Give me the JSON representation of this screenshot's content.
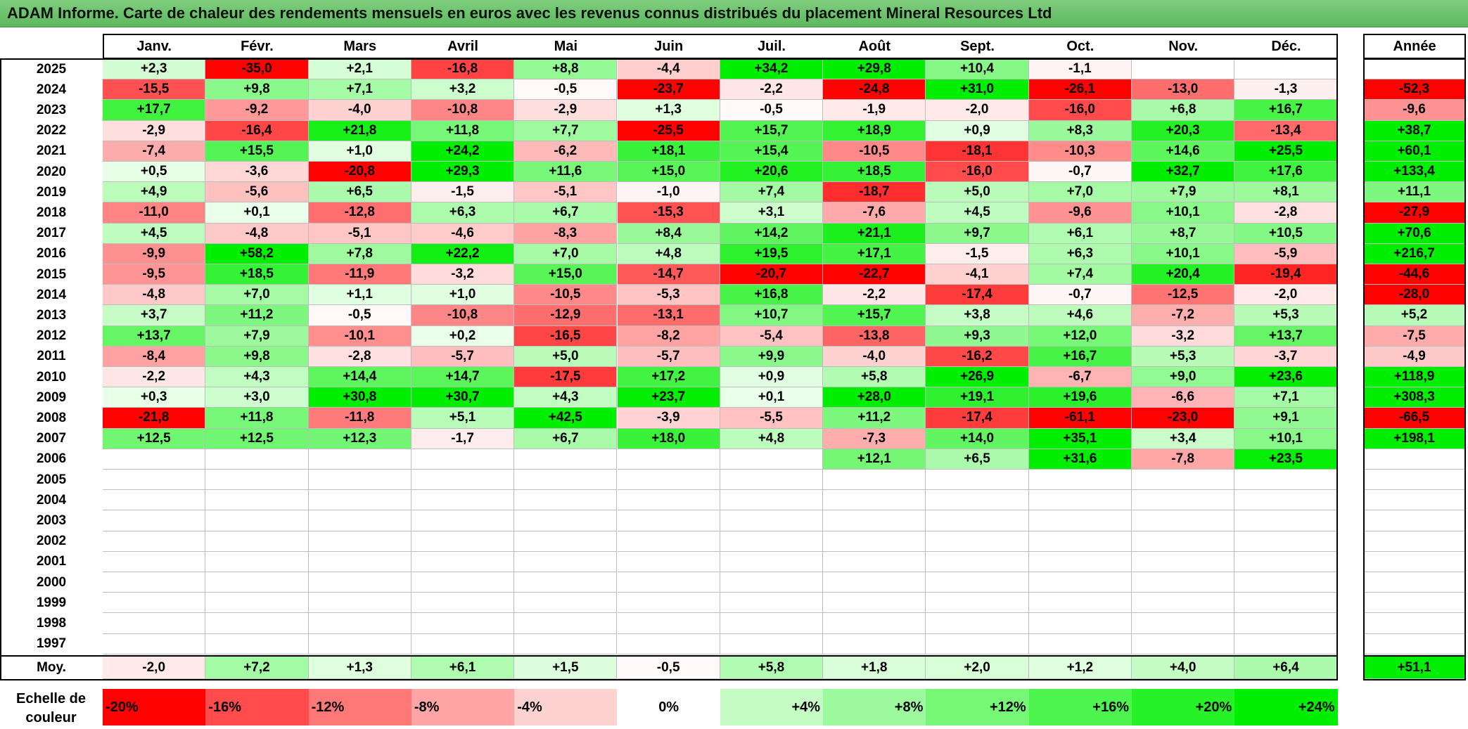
{
  "title": "ADAM Informe. Carte de chaleur des rendements mensuels en euros avec les revenus connus distribués du placement Mineral Resources Ltd",
  "colors": {
    "negative_max": "#ff0000",
    "neutral": "#ffffff",
    "positive_max": "#00ee00",
    "title_bar": "#6cc46c"
  },
  "chart_data": {
    "type": "heatmap",
    "title": "ADAM Informe. Carte de chaleur des rendements mensuels en euros avec les revenus connus distribués du placement Mineral Resources Ltd",
    "months": [
      "Janv.",
      "Févr.",
      "Mars",
      "Avril",
      "Mai",
      "Juin",
      "Juil.",
      "Août",
      "Sept.",
      "Oct.",
      "Nov.",
      "Déc."
    ],
    "year_header": "Année",
    "average_label": "Moy.",
    "scale_label_line1": "Echelle de",
    "scale_label_line2": "couleur",
    "rows": [
      {
        "year": "2025",
        "values": [
          2.3,
          -35.0,
          2.1,
          -16.8,
          8.8,
          -4.4,
          34.2,
          29.8,
          10.4,
          -1.1,
          null,
          null
        ],
        "annual": null
      },
      {
        "year": "2024",
        "values": [
          -15.5,
          9.8,
          7.1,
          3.2,
          -0.5,
          -23.7,
          -2.2,
          -24.8,
          31.0,
          -26.1,
          -13.0,
          -1.3
        ],
        "annual": -52.3
      },
      {
        "year": "2023",
        "values": [
          17.7,
          -9.2,
          -4.0,
          -10.8,
          -2.9,
          1.3,
          -0.5,
          -1.9,
          -2.0,
          -16.0,
          6.8,
          16.7
        ],
        "annual": -9.6
      },
      {
        "year": "2022",
        "values": [
          -2.9,
          -16.4,
          21.8,
          11.8,
          7.7,
          -25.5,
          15.7,
          18.9,
          0.9,
          8.3,
          20.3,
          -13.4
        ],
        "annual": 38.7
      },
      {
        "year": "2021",
        "values": [
          -7.4,
          15.5,
          1.0,
          24.2,
          -6.2,
          18.1,
          15.4,
          -10.5,
          -18.1,
          -10.3,
          14.6,
          25.5
        ],
        "annual": 60.1
      },
      {
        "year": "2020",
        "values": [
          0.5,
          -3.6,
          -20.8,
          29.3,
          11.6,
          15.0,
          20.6,
          18.5,
          -16.0,
          -0.7,
          32.7,
          17.6
        ],
        "annual": 133.4
      },
      {
        "year": "2019",
        "values": [
          4.9,
          -5.6,
          6.5,
          -1.5,
          -5.1,
          -1.0,
          7.4,
          -18.7,
          5.0,
          7.0,
          7.9,
          8.1
        ],
        "annual": 11.1
      },
      {
        "year": "2018",
        "values": [
          -11.0,
          0.1,
          -12.8,
          6.3,
          6.7,
          -15.3,
          3.1,
          -7.6,
          4.5,
          -9.6,
          10.1,
          -2.8
        ],
        "annual": -27.9
      },
      {
        "year": "2017",
        "values": [
          4.5,
          -4.8,
          -5.1,
          -4.6,
          -8.3,
          8.4,
          14.2,
          21.1,
          9.7,
          6.1,
          8.7,
          10.5
        ],
        "annual": 70.6
      },
      {
        "year": "2016",
        "values": [
          -9.9,
          58.2,
          7.8,
          22.2,
          7.0,
          4.8,
          19.5,
          17.1,
          -1.5,
          6.3,
          10.1,
          -5.9
        ],
        "annual": 216.7
      },
      {
        "year": "2015",
        "values": [
          -9.5,
          18.5,
          -11.9,
          -3.2,
          15.0,
          -14.7,
          -20.7,
          -22.7,
          -4.1,
          7.4,
          20.4,
          -19.4
        ],
        "annual": -44.6
      },
      {
        "year": "2014",
        "values": [
          -4.8,
          7.0,
          1.1,
          1.0,
          -10.5,
          -5.3,
          16.8,
          -2.2,
          -17.4,
          -0.7,
          -12.5,
          -2.0
        ],
        "annual": -28.0
      },
      {
        "year": "2013",
        "values": [
          3.7,
          11.2,
          -0.5,
          -10.8,
          -12.9,
          -13.1,
          10.7,
          15.7,
          3.8,
          4.6,
          -7.2,
          5.3
        ],
        "annual": 5.2
      },
      {
        "year": "2012",
        "values": [
          13.7,
          7.9,
          -10.1,
          0.2,
          -16.5,
          -8.2,
          -5.4,
          -13.8,
          9.3,
          12.0,
          -3.2,
          13.7
        ],
        "annual": -7.5
      },
      {
        "year": "2011",
        "values": [
          -8.4,
          9.8,
          -2.8,
          -5.7,
          5.0,
          -5.7,
          9.9,
          -4.0,
          -16.2,
          16.7,
          5.3,
          -3.7
        ],
        "annual": -4.9
      },
      {
        "year": "2010",
        "values": [
          -2.2,
          4.3,
          14.4,
          14.7,
          -17.5,
          17.2,
          0.9,
          5.8,
          26.9,
          -6.7,
          9.0,
          23.6
        ],
        "annual": 118.9
      },
      {
        "year": "2009",
        "values": [
          0.3,
          3.0,
          30.8,
          30.7,
          4.3,
          23.7,
          0.1,
          28.0,
          19.1,
          19.6,
          -6.6,
          7.1
        ],
        "annual": 308.3
      },
      {
        "year": "2008",
        "values": [
          -21.8,
          11.8,
          -11.8,
          5.1,
          42.5,
          -3.9,
          -5.5,
          11.2,
          -17.4,
          -61.1,
          -23.0,
          9.1
        ],
        "annual": -66.5
      },
      {
        "year": "2007",
        "values": [
          12.5,
          12.5,
          12.3,
          -1.7,
          6.7,
          18.0,
          4.8,
          -7.3,
          14.0,
          35.1,
          3.4,
          10.1
        ],
        "annual": 198.1
      },
      {
        "year": "2006",
        "values": [
          null,
          null,
          null,
          null,
          null,
          null,
          null,
          12.1,
          6.5,
          31.6,
          -7.8,
          23.5
        ],
        "annual": null
      },
      {
        "year": "2005",
        "values": [
          null,
          null,
          null,
          null,
          null,
          null,
          null,
          null,
          null,
          null,
          null,
          null
        ],
        "annual": null
      },
      {
        "year": "2004",
        "values": [
          null,
          null,
          null,
          null,
          null,
          null,
          null,
          null,
          null,
          null,
          null,
          null
        ],
        "annual": null
      },
      {
        "year": "2003",
        "values": [
          null,
          null,
          null,
          null,
          null,
          null,
          null,
          null,
          null,
          null,
          null,
          null
        ],
        "annual": null
      },
      {
        "year": "2002",
        "values": [
          null,
          null,
          null,
          null,
          null,
          null,
          null,
          null,
          null,
          null,
          null,
          null
        ],
        "annual": null
      },
      {
        "year": "2001",
        "values": [
          null,
          null,
          null,
          null,
          null,
          null,
          null,
          null,
          null,
          null,
          null,
          null
        ],
        "annual": null
      },
      {
        "year": "2000",
        "values": [
          null,
          null,
          null,
          null,
          null,
          null,
          null,
          null,
          null,
          null,
          null,
          null
        ],
        "annual": null
      },
      {
        "year": "1999",
        "values": [
          null,
          null,
          null,
          null,
          null,
          null,
          null,
          null,
          null,
          null,
          null,
          null
        ],
        "annual": null
      },
      {
        "year": "1998",
        "values": [
          null,
          null,
          null,
          null,
          null,
          null,
          null,
          null,
          null,
          null,
          null,
          null
        ],
        "annual": null
      },
      {
        "year": "1997",
        "values": [
          null,
          null,
          null,
          null,
          null,
          null,
          null,
          null,
          null,
          null,
          null,
          null
        ],
        "annual": null
      }
    ],
    "averages": [
      -2.0,
      7.2,
      1.3,
      6.1,
      1.5,
      -0.5,
      5.8,
      1.8,
      2.0,
      1.2,
      4.0,
      6.4
    ],
    "average_annual": 51.1,
    "color_scale": [
      {
        "label": "-20%",
        "value": -20
      },
      {
        "label": "-16%",
        "value": -16
      },
      {
        "label": "-12%",
        "value": -12
      },
      {
        "label": "-8%",
        "value": -8
      },
      {
        "label": "-4%",
        "value": -4
      },
      {
        "label": "0%",
        "value": 0
      },
      {
        "label": "+4%",
        "value": 4
      },
      {
        "label": "+8%",
        "value": 8
      },
      {
        "label": "+12%",
        "value": 12
      },
      {
        "label": "+16%",
        "value": 16
      },
      {
        "label": "+20%",
        "value": 20
      },
      {
        "label": "+24%",
        "value": 24
      }
    ]
  }
}
